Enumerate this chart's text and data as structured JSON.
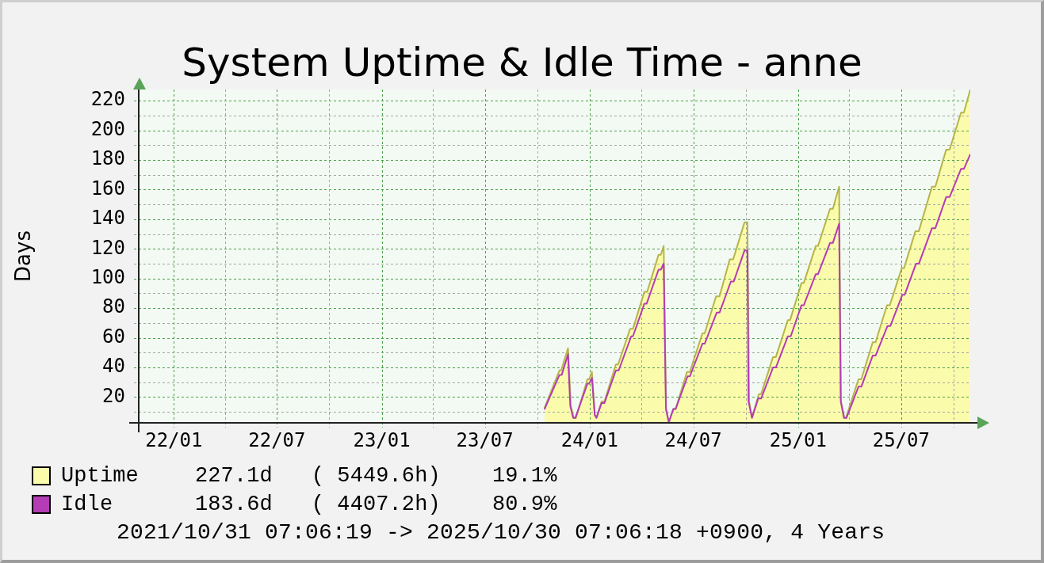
{
  "chart_data": {
    "type": "area",
    "title": "System Uptime & Idle Time - anne",
    "ylabel": "Days",
    "xlim": [
      "2021-10-31T07:06",
      "2025-10-30T07:06"
    ],
    "xticks": [
      {
        "value": "2022-01-01",
        "label": "22/01"
      },
      {
        "value": "2022-04-01",
        "label": null
      },
      {
        "value": "2022-07-01",
        "label": "22/07"
      },
      {
        "value": "2022-10-01",
        "label": null
      },
      {
        "value": "2023-01-01",
        "label": "23/01"
      },
      {
        "value": "2023-04-01",
        "label": null
      },
      {
        "value": "2023-07-01",
        "label": "23/07"
      },
      {
        "value": "2023-10-01",
        "label": null
      },
      {
        "value": "2024-01-01",
        "label": "24/01"
      },
      {
        "value": "2024-04-01",
        "label": null
      },
      {
        "value": "2024-07-01",
        "label": "24/07"
      },
      {
        "value": "2024-10-01",
        "label": null
      },
      {
        "value": "2025-01-01",
        "label": "25/01"
      },
      {
        "value": "2025-04-01",
        "label": null
      },
      {
        "value": "2025-07-01",
        "label": "25/07"
      },
      {
        "value": "2025-10-01",
        "label": null
      }
    ],
    "ylim": [
      2.6,
      227.6
    ],
    "yticks": [
      {
        "value": 10,
        "label": null
      },
      20,
      {
        "value": 30,
        "label": null
      },
      40,
      {
        "value": 50,
        "label": null
      },
      60,
      {
        "value": 70,
        "label": null
      },
      80,
      {
        "value": 90,
        "label": null
      },
      100,
      {
        "value": 110,
        "label": null
      },
      120,
      {
        "value": 130,
        "label": null
      },
      140,
      {
        "value": 150,
        "label": null
      },
      160,
      {
        "value": 170,
        "label": null
      },
      180,
      {
        "value": 190,
        "label": null
      },
      200,
      {
        "value": 210,
        "label": null
      },
      220
    ],
    "grid": true,
    "legend": "bottom",
    "series": [
      {
        "name": "Uptime",
        "color": "#b5b54c",
        "x": [
          "2023-10-14",
          "2023-11-09",
          "2023-11-12",
          "2023-11-24",
          "2023-11-29",
          "2023-12-04",
          "2023-12-08",
          "2023-12-28",
          "2023-12-31",
          "2024-01-05",
          "2024-01-10",
          "2024-01-13",
          "2024-01-22",
          "2024-01-27",
          "2024-02-16",
          "2024-02-20",
          "2024-03-12",
          "2024-03-17",
          "2024-04-06",
          "2024-04-11",
          "2024-05-01",
          "2024-05-05",
          "2024-05-10",
          "2024-05-14",
          "2024-05-19",
          "2024-05-27",
          "2024-05-31",
          "2024-06-20",
          "2024-06-25",
          "2024-07-17",
          "2024-07-21",
          "2024-08-10",
          "2024-08-16",
          "2024-09-03",
          "2024-09-09",
          "2024-09-29",
          "2024-10-04",
          "2024-10-07",
          "2024-10-12",
          "2024-10-24",
          "2024-10-28",
          "2024-11-18",
          "2024-11-23",
          "2024-12-14",
          "2024-12-18",
          "2025-01-07",
          "2025-01-11",
          "2025-02-01",
          "2025-02-05",
          "2025-02-26",
          "2025-03-03",
          "2025-03-14",
          "2025-03-17",
          "2025-03-22",
          "2025-03-26",
          "2025-04-17",
          "2025-04-22",
          "2025-05-12",
          "2025-05-17",
          "2025-06-06",
          "2025-06-11",
          "2025-07-02",
          "2025-07-06",
          "2025-07-26",
          "2025-08-01",
          "2025-08-24",
          "2025-08-30",
          "2025-09-18",
          "2025-09-24",
          "2025-10-14",
          "2025-10-19",
          "2025-10-30"
        ],
        "values": [
          13,
          38,
          38,
          53,
          14,
          6,
          6,
          32,
          32,
          37,
          8,
          6,
          17,
          17,
          42,
          42,
          66,
          66,
          91,
          91,
          116,
          116,
          122,
          12,
          3,
          12,
          12,
          37,
          37,
          63,
          63,
          88,
          88,
          113,
          113,
          138,
          138,
          17,
          6,
          22,
          22,
          47,
          47,
          72,
          72,
          97,
          97,
          122,
          122,
          147,
          147,
          162,
          17,
          6,
          6,
          32,
          32,
          57,
          57,
          82,
          82,
          107,
          107,
          132,
          132,
          162,
          162,
          187,
          187,
          212,
          212,
          227.1
        ]
      },
      {
        "name": "Idle",
        "type": "line",
        "color": "#b43cb4",
        "x": [
          "2023-10-14",
          "2023-11-09",
          "2023-11-13",
          "2023-11-24",
          "2023-11-28",
          "2023-12-03",
          "2023-12-07",
          "2023-12-28",
          "2023-12-31",
          "2024-01-05",
          "2024-01-10",
          "2024-01-13",
          "2024-01-22",
          "2024-01-27",
          "2024-02-16",
          "2024-02-21",
          "2024-03-14",
          "2024-03-17",
          "2024-04-06",
          "2024-04-10",
          "2024-05-01",
          "2024-05-05",
          "2024-05-10",
          "2024-05-14",
          "2024-05-19",
          "2024-05-27",
          "2024-05-31",
          "2024-06-21",
          "2024-06-25",
          "2024-07-17",
          "2024-07-21",
          "2024-08-11",
          "2024-08-16",
          "2024-09-05",
          "2024-09-10",
          "2024-09-29",
          "2024-10-04",
          "2024-10-06",
          "2024-10-12",
          "2024-10-23",
          "2024-10-28",
          "2024-11-18",
          "2024-11-23",
          "2024-12-14",
          "2024-12-19",
          "2025-01-07",
          "2025-01-11",
          "2025-02-01",
          "2025-02-05",
          "2025-02-26",
          "2025-03-03",
          "2025-03-14",
          "2025-03-17",
          "2025-03-23",
          "2025-03-27",
          "2025-04-17",
          "2025-04-22",
          "2025-05-12",
          "2025-05-17",
          "2025-06-07",
          "2025-06-12",
          "2025-07-03",
          "2025-07-07",
          "2025-07-27",
          "2025-08-01",
          "2025-08-24",
          "2025-08-30",
          "2025-09-18",
          "2025-09-24",
          "2025-10-14",
          "2025-10-19",
          "2025-10-30"
        ],
        "values": [
          12,
          35,
          35,
          49,
          14,
          6,
          6,
          29,
          29,
          33,
          8,
          6,
          16,
          16,
          38,
          38,
          61,
          61,
          83,
          83,
          106,
          106,
          110,
          12,
          3,
          12,
          12,
          34,
          34,
          56,
          56,
          77,
          77,
          98,
          98,
          119,
          119,
          17,
          6,
          19,
          19,
          40,
          40,
          61,
          61,
          82,
          82,
          103,
          103,
          124,
          124,
          137,
          17,
          6,
          6,
          27,
          27,
          48,
          48,
          68,
          68,
          89,
          89,
          110,
          110,
          134,
          134,
          155,
          155,
          174,
          174,
          183.6
        ]
      }
    ],
    "annotations": [
      "227.1d   ( 5449.6h)    19.1%",
      "183.6d   ( 4407.2h)    80.9%",
      "2021/10/31 07:06:19 -> 2025/10/30 07:06:18 +0900, 4 Years"
    ]
  }
}
